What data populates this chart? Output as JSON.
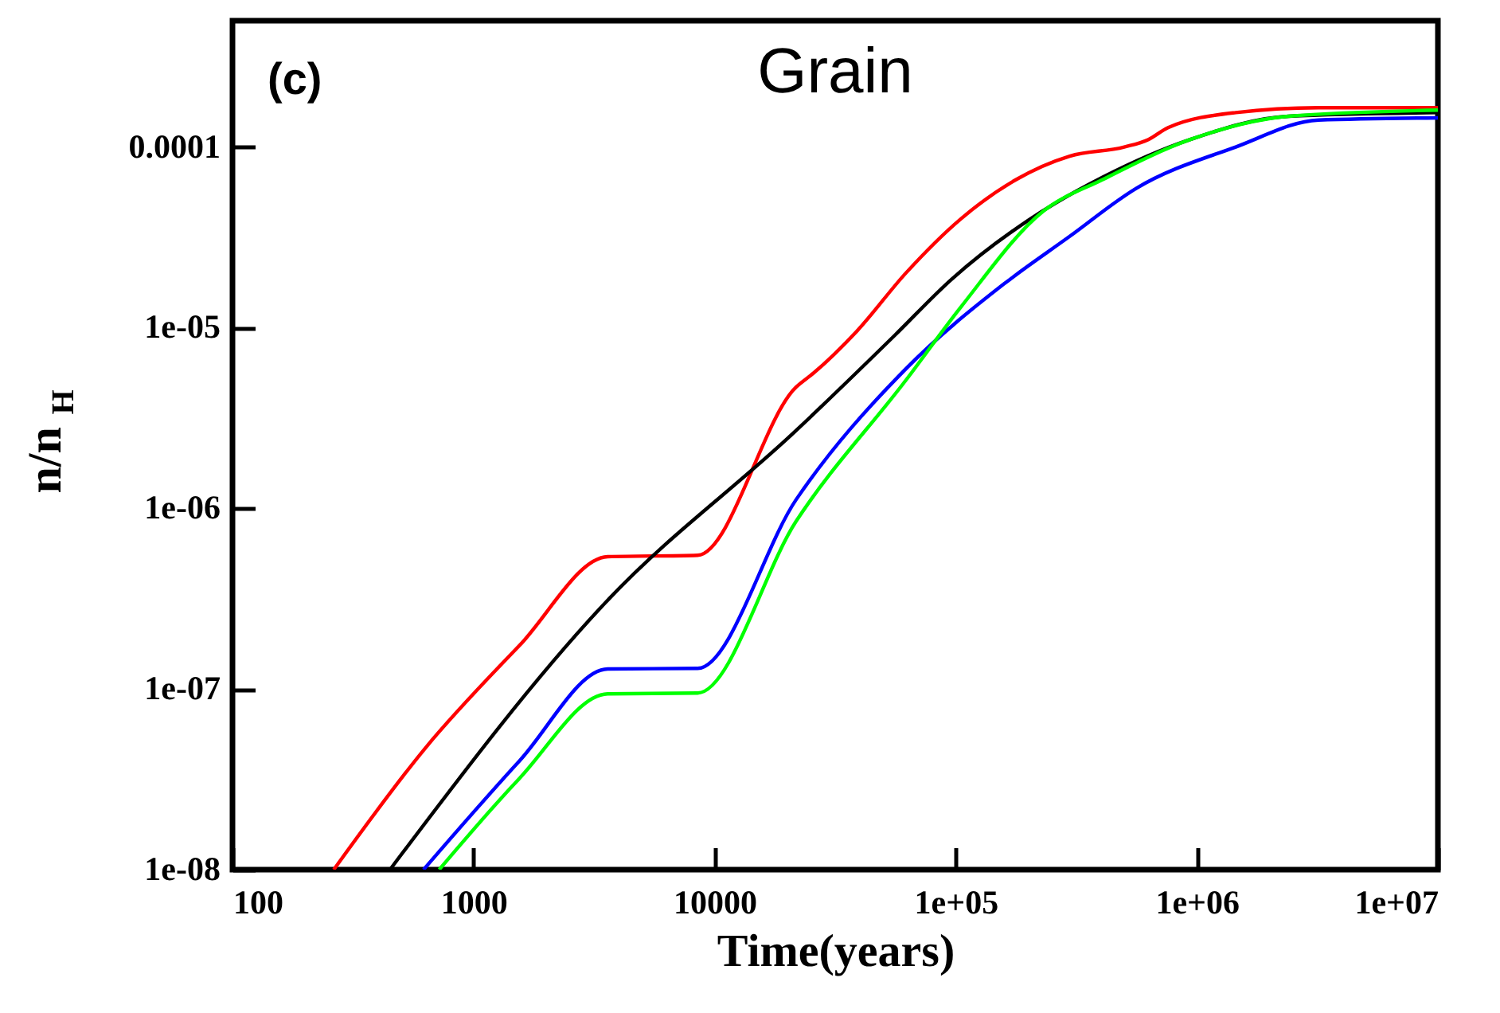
{
  "chart_data": {
    "type": "line",
    "title": "Grain",
    "xlabel": "Time(years)",
    "ylabel": "n/n$_{H}$",
    "annotations": [
      "(c)"
    ],
    "log": "xy",
    "grid": false,
    "marker": "none",
    "line_style": "solid",
    "xlim": [
      100,
      10000000
    ],
    "xticks": [
      100,
      1000,
      10000,
      {
        "value": 100000,
        "label": "1e+05"
      },
      {
        "value": 1000000,
        "label": "1e+06"
      },
      {
        "value": 10000000,
        "label": "1e+07"
      }
    ],
    "ylim": [
      1e-08,
      0.0005
    ],
    "yticks": [
      {
        "value": 1e-08,
        "label": "1e-08"
      },
      {
        "value": 1e-07,
        "label": "1e-07"
      },
      {
        "value": 1e-06,
        "label": "1e-06"
      },
      {
        "value": 1e-05,
        "label": "1e-05"
      },
      {
        "value": 0.0001,
        "label": "0.0001"
      }
    ],
    "series": [
      {
        "color": "#ff0000",
        "x": [
          263,
          630,
          1550,
          3600,
          8500,
          21800,
          25700,
          39000,
          62000,
          105000,
          178000,
          297000,
          500000,
          630000,
          760000,
          1450000,
          3200000,
          10000000
        ],
        "values": [
          1e-08,
          4.7e-08,
          1.74e-07,
          5.4e-07,
          5.5e-07,
          4.7e-06,
          5.6e-06,
          9.6e-06,
          2e-05,
          4e-05,
          6.6e-05,
          8.9e-05,
          0.0001,
          0.00011,
          0.000128,
          0.000155,
          0.000165,
          0.000165
        ]
      },
      {
        "color": "#000000",
        "x": [
          450,
          3600,
          21800,
          56000,
          96000,
          204000,
          407000,
          940000,
          2400000,
          10000000
        ],
        "values": [
          1e-08,
          3.1e-07,
          2.7e-06,
          9.1e-06,
          1.85e-05,
          4e-05,
          6.8e-05,
          0.00011,
          0.000148,
          0.000155
        ]
      },
      {
        "color": "#0000ff",
        "x": [
          620,
          1550,
          3600,
          8500,
          21800,
          62000,
          158000,
          297000,
          560000,
          1450000,
          3200000,
          10000000
        ],
        "values": [
          1e-08,
          4e-08,
          1.29e-07,
          1.3e-07,
          1.12e-06,
          5.9e-06,
          1.74e-05,
          3.2e-05,
          5.9e-05,
          0.0001,
          0.000141,
          0.000145
        ]
      },
      {
        "color": "#00ff00",
        "x": [
          720,
          1550,
          3600,
          8500,
          21800,
          62000,
          105000,
          230000,
          407000,
          940000,
          2400000,
          10000000
        ],
        "values": [
          1e-08,
          3.2e-08,
          9.4e-08,
          9.5e-08,
          8.5e-07,
          5.1e-06,
          1.3e-05,
          4.4e-05,
          6.6e-05,
          0.00011,
          0.000148,
          0.00016
        ]
      }
    ]
  }
}
